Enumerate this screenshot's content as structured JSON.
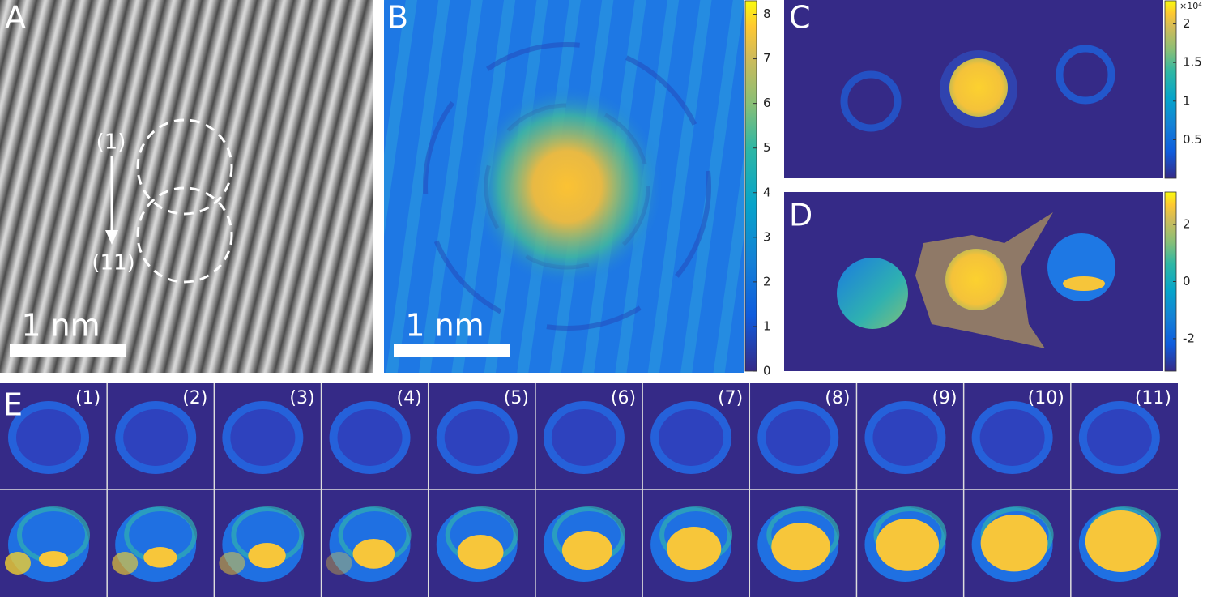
{
  "panels": {
    "a": {
      "letter": "A",
      "scale_bar": "1 nm",
      "start_label": "(1)",
      "end_label": "(11)"
    },
    "b": {
      "letter": "B",
      "scale_bar": "1 nm",
      "colorbar": {
        "lim": [
          0,
          8.3
        ],
        "ticks": [
          0,
          1,
          2,
          3,
          4,
          5,
          6,
          7,
          8
        ]
      }
    },
    "c": {
      "letter": "C",
      "colorbar": {
        "exponent_label": "×10⁴",
        "lim": [
          0,
          2.3
        ],
        "ticks": [
          0.5,
          1,
          1.5,
          2
        ]
      }
    },
    "d": {
      "letter": "D",
      "colorbar": {
        "lim": [
          -3.14,
          3.14
        ],
        "ticks": [
          2,
          0,
          -2
        ]
      }
    },
    "e": {
      "letter": "E",
      "labels": [
        "(1)",
        "(2)",
        "(3)",
        "(4)",
        "(5)",
        "(6)",
        "(7)",
        "(8)",
        "(9)",
        "(10)",
        "(11)"
      ]
    }
  }
}
